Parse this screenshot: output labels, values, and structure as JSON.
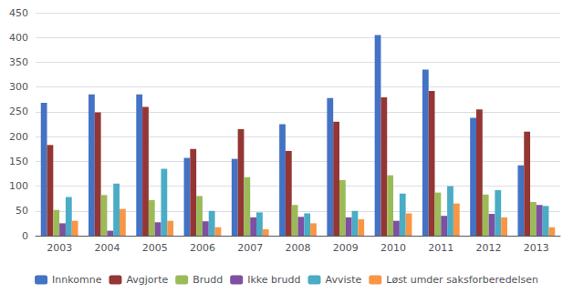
{
  "chart_data": {
    "type": "bar",
    "categories": [
      "2003",
      "2004",
      "2005",
      "2006",
      "2007",
      "2008",
      "2009",
      "2010",
      "2011",
      "2012",
      "2013"
    ],
    "series": [
      {
        "name": "Innkomne",
        "color": "#4472c4",
        "values": [
          268,
          285,
          285,
          157,
          155,
          225,
          278,
          405,
          335,
          238,
          142
        ]
      },
      {
        "name": "Avgjorte",
        "color": "#943634",
        "values": [
          183,
          249,
          260,
          175,
          215,
          171,
          230,
          279,
          292,
          255,
          210
        ]
      },
      {
        "name": "Brudd",
        "color": "#9bbb59",
        "values": [
          52,
          82,
          72,
          80,
          118,
          62,
          112,
          122,
          87,
          83,
          68
        ]
      },
      {
        "name": "Ikke brudd",
        "color": "#7f4fa2",
        "values": [
          25,
          10,
          27,
          29,
          37,
          38,
          37,
          30,
          40,
          44,
          62
        ]
      },
      {
        "name": "Avviste",
        "color": "#4bacc6",
        "values": [
          78,
          105,
          135,
          50,
          47,
          45,
          50,
          85,
          100,
          92,
          60
        ]
      },
      {
        "name": "Løst umder saksforberedelsen",
        "color": "#f79646",
        "values": [
          30,
          54,
          30,
          17,
          13,
          25,
          33,
          45,
          65,
          37,
          17
        ]
      }
    ],
    "ylim": [
      0,
      450
    ],
    "yticks": [
      0,
      50,
      100,
      150,
      200,
      250,
      300,
      350,
      400,
      450
    ],
    "grid": true,
    "legend": "bottom"
  }
}
